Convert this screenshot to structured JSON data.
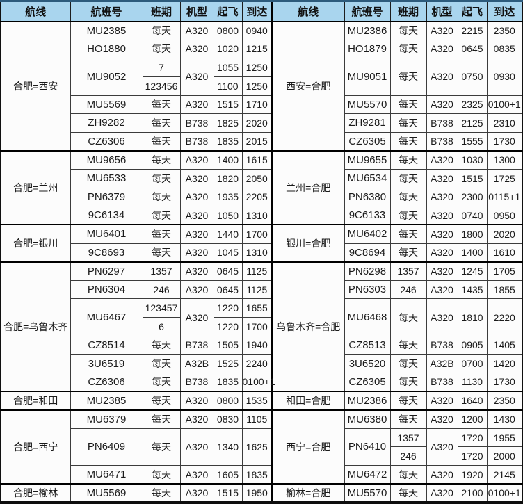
{
  "table": {
    "columns": [
      "航线",
      "航班号",
      "班期",
      "机型",
      "起飞",
      "到达"
    ],
    "halves": [
      {
        "side": "left",
        "groups": [
          {
            "route": "合肥=西安",
            "flights": [
              {
                "no": "MU2385",
                "type": "A320",
                "segments": [
                  {
                    "days": "每天",
                    "dep": "0800",
                    "arr": "0940"
                  }
                ]
              },
              {
                "no": "HO1880",
                "type": "A320",
                "segments": [
                  {
                    "days": "每天",
                    "dep": "1020",
                    "arr": "1215"
                  }
                ]
              },
              {
                "no": "MU9052",
                "type": "A320",
                "segments": [
                  {
                    "days": "7",
                    "dep": "1055",
                    "arr": "1250"
                  },
                  {
                    "days": "123456",
                    "dep": "1100",
                    "arr": "1250"
                  }
                ]
              },
              {
                "no": "MU5569",
                "type": "A320",
                "segments": [
                  {
                    "days": "每天",
                    "dep": "1515",
                    "arr": "1710"
                  }
                ]
              },
              {
                "no": "ZH9282",
                "type": "B738",
                "segments": [
                  {
                    "days": "每天",
                    "dep": "1825",
                    "arr": "2020"
                  }
                ]
              },
              {
                "no": "CZ6306",
                "type": "B738",
                "segments": [
                  {
                    "days": "每天",
                    "dep": "1835",
                    "arr": "2015"
                  }
                ]
              }
            ]
          },
          {
            "route": "合肥=兰州",
            "flights": [
              {
                "no": "MU9656",
                "type": "A320",
                "segments": [
                  {
                    "days": "每天",
                    "dep": "1400",
                    "arr": "1615"
                  }
                ]
              },
              {
                "no": "MU6533",
                "type": "A320",
                "segments": [
                  {
                    "days": "每天",
                    "dep": "1820",
                    "arr": "2050"
                  }
                ]
              },
              {
                "no": "PN6379",
                "type": "A320",
                "segments": [
                  {
                    "days": "每天",
                    "dep": "1935",
                    "arr": "2205"
                  }
                ]
              },
              {
                "no": "9C6134",
                "type": "A320",
                "segments": [
                  {
                    "days": "每天",
                    "dep": "1050",
                    "arr": "1310"
                  }
                ]
              }
            ]
          },
          {
            "route": "合肥=银川",
            "flights": [
              {
                "no": "MU6401",
                "type": "A320",
                "segments": [
                  {
                    "days": "每天",
                    "dep": "1440",
                    "arr": "1700"
                  }
                ]
              },
              {
                "no": "9C8693",
                "type": "A320",
                "segments": [
                  {
                    "days": "每天",
                    "dep": "1045",
                    "arr": "1310"
                  }
                ]
              }
            ]
          },
          {
            "route": "合肥=乌鲁木齐",
            "flights": [
              {
                "no": "PN6297",
                "type": "A320",
                "segments": [
                  {
                    "days": "1357",
                    "dep": "0645",
                    "arr": "1125"
                  }
                ]
              },
              {
                "no": "PN6304",
                "type": "A320",
                "segments": [
                  {
                    "days": "246",
                    "dep": "0645",
                    "arr": "1125"
                  }
                ]
              },
              {
                "no": "MU6467",
                "type": "A320",
                "segments": [
                  {
                    "days": "123457",
                    "dep": "1220",
                    "arr": "1655"
                  },
                  {
                    "days": "6",
                    "dep": "1220",
                    "arr": "1700"
                  }
                ]
              },
              {
                "no": "CZ8514",
                "type": "B738",
                "segments": [
                  {
                    "days": "每天",
                    "dep": "1505",
                    "arr": "1940"
                  }
                ]
              },
              {
                "no": "3U6519",
                "type": "A32B",
                "segments": [
                  {
                    "days": "每天",
                    "dep": "1525",
                    "arr": "2240"
                  }
                ]
              },
              {
                "no": "CZ6306",
                "type": "B738",
                "segments": [
                  {
                    "days": "每天",
                    "dep": "1835",
                    "arr": "0100+1"
                  }
                ]
              }
            ]
          },
          {
            "route": "合肥=和田",
            "flights": [
              {
                "no": "MU2385",
                "type": "A320",
                "segments": [
                  {
                    "days": "每天",
                    "dep": "0800",
                    "arr": "1535"
                  }
                ]
              }
            ]
          },
          {
            "route": "合肥=西宁",
            "flights": [
              {
                "no": "MU6379",
                "type": "A320",
                "segments": [
                  {
                    "days": "每天",
                    "dep": "0830",
                    "arr": "1105"
                  }
                ]
              },
              {
                "no": "PN6409",
                "type": "A320",
                "span": 2,
                "segments": [
                  {
                    "days": "每天",
                    "dep": "1340",
                    "arr": "1625"
                  }
                ]
              },
              {
                "no": "MU6471",
                "type": "A320",
                "segments": [
                  {
                    "days": "每天",
                    "dep": "1605",
                    "arr": "1835"
                  }
                ]
              }
            ]
          },
          {
            "route": "合肥=榆林",
            "flights": [
              {
                "no": "MU5569",
                "type": "A320",
                "segments": [
                  {
                    "days": "每天",
                    "dep": "1515",
                    "arr": "1950"
                  }
                ]
              }
            ]
          }
        ]
      },
      {
        "side": "right",
        "groups": [
          {
            "route": "西安=合肥",
            "flights": [
              {
                "no": "MU2386",
                "type": "A320",
                "segments": [
                  {
                    "days": "每天",
                    "dep": "2215",
                    "arr": "2350"
                  }
                ]
              },
              {
                "no": "HO1879",
                "type": "A320",
                "segments": [
                  {
                    "days": "每天",
                    "dep": "0645",
                    "arr": "0835"
                  }
                ]
              },
              {
                "no": "MU9051",
                "type": "A320",
                "span": 2,
                "segments": [
                  {
                    "days": "每天",
                    "dep": "0750",
                    "arr": "0930"
                  }
                ]
              },
              {
                "no": "MU5570",
                "type": "A320",
                "segments": [
                  {
                    "days": "每天",
                    "dep": "2325",
                    "arr": "0100+1"
                  }
                ]
              },
              {
                "no": "ZH9281",
                "type": "B738",
                "segments": [
                  {
                    "days": "每天",
                    "dep": "2125",
                    "arr": "2310"
                  }
                ]
              },
              {
                "no": "CZ6305",
                "type": "B738",
                "segments": [
                  {
                    "days": "每天",
                    "dep": "1555",
                    "arr": "1730"
                  }
                ]
              }
            ]
          },
          {
            "route": "兰州=合肥",
            "flights": [
              {
                "no": "MU9655",
                "type": "A320",
                "segments": [
                  {
                    "days": "每天",
                    "dep": "1030",
                    "arr": "1300"
                  }
                ]
              },
              {
                "no": "MU6534",
                "type": "A320",
                "segments": [
                  {
                    "days": "每天",
                    "dep": "1515",
                    "arr": "1725"
                  }
                ]
              },
              {
                "no": "PN6380",
                "type": "A320",
                "segments": [
                  {
                    "days": "每天",
                    "dep": "2300",
                    "arr": "0115+1"
                  }
                ]
              },
              {
                "no": "9C6133",
                "type": "A320",
                "segments": [
                  {
                    "days": "每天",
                    "dep": "0740",
                    "arr": "0950"
                  }
                ]
              }
            ]
          },
          {
            "route": "银川=合肥",
            "flights": [
              {
                "no": "MU6402",
                "type": "A320",
                "segments": [
                  {
                    "days": "每天",
                    "dep": "1800",
                    "arr": "2020"
                  }
                ]
              },
              {
                "no": "9C8694",
                "type": "A320",
                "segments": [
                  {
                    "days": "每天",
                    "dep": "1400",
                    "arr": "1610"
                  }
                ]
              }
            ]
          },
          {
            "route": "乌鲁木齐=合肥",
            "flights": [
              {
                "no": "PN6298",
                "type": "A320",
                "segments": [
                  {
                    "days": "1357",
                    "dep": "1245",
                    "arr": "1705"
                  }
                ]
              },
              {
                "no": "PN6303",
                "type": "A320",
                "segments": [
                  {
                    "days": "246",
                    "dep": "1435",
                    "arr": "1855"
                  }
                ]
              },
              {
                "no": "MU6468",
                "type": "A320",
                "span": 2,
                "segments": [
                  {
                    "days": "每天",
                    "dep": "1810",
                    "arr": "2220"
                  }
                ]
              },
              {
                "no": "CZ8513",
                "type": "B738",
                "segments": [
                  {
                    "days": "每天",
                    "dep": "0905",
                    "arr": "1405"
                  }
                ]
              },
              {
                "no": "3U6520",
                "type": "A32B",
                "segments": [
                  {
                    "days": "每天",
                    "dep": "0700",
                    "arr": "1420"
                  }
                ]
              },
              {
                "no": "CZ6305",
                "type": "B738",
                "segments": [
                  {
                    "days": "每天",
                    "dep": "1130",
                    "arr": "1730"
                  }
                ]
              }
            ]
          },
          {
            "route": "和田=合肥",
            "flights": [
              {
                "no": "MU2386",
                "type": "A320",
                "segments": [
                  {
                    "days": "每天",
                    "dep": "1640",
                    "arr": "2350"
                  }
                ]
              }
            ]
          },
          {
            "route": "西宁=合肥",
            "flights": [
              {
                "no": "MU6380",
                "type": "A320",
                "segments": [
                  {
                    "days": "每天",
                    "dep": "1200",
                    "arr": "1430"
                  }
                ]
              },
              {
                "no": "PN6410",
                "type": "A320",
                "segments": [
                  {
                    "days": "1357",
                    "dep": "1720",
                    "arr": "1955"
                  },
                  {
                    "days": "246",
                    "dep": "1720",
                    "arr": "2000"
                  }
                ]
              },
              {
                "no": "MU6472",
                "type": "A320",
                "segments": [
                  {
                    "days": "每天",
                    "dep": "1920",
                    "arr": "2145"
                  }
                ]
              }
            ]
          },
          {
            "route": "榆林=合肥",
            "flights": [
              {
                "no": "MU5570",
                "type": "A320",
                "segments": [
                  {
                    "days": "每天",
                    "dep": "2100",
                    "arr": "0100+1"
                  }
                ]
              }
            ]
          }
        ]
      }
    ]
  },
  "colors": {
    "header_bg": "#a9d5ee",
    "grid_line": "#3c3c3c",
    "group_line": "#000000",
    "top_edge": "#2d5b7c",
    "text": "#1b1b1b"
  }
}
